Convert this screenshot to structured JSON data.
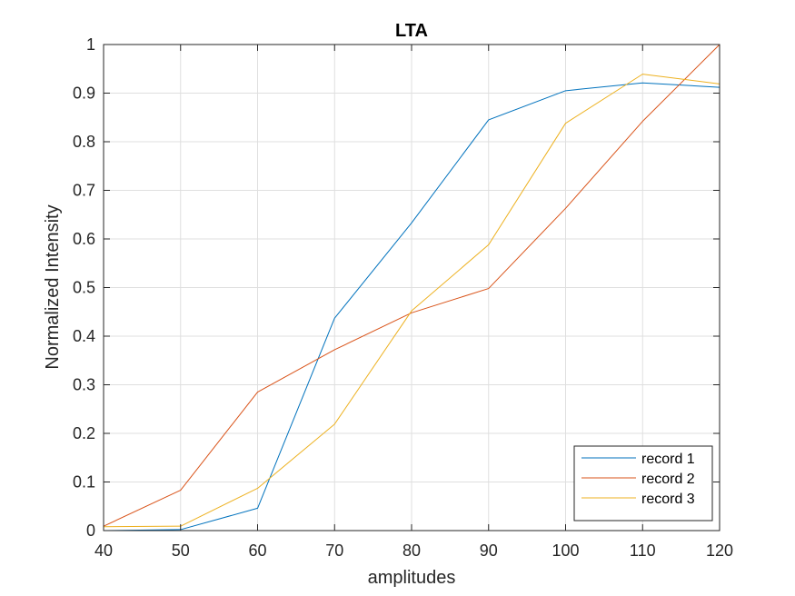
{
  "chart_data": {
    "type": "line",
    "title": "LTA",
    "xlabel": "amplitudes",
    "ylabel": "Normalized Intensity",
    "xlim": [
      40,
      120
    ],
    "ylim": [
      0,
      1
    ],
    "xticks": [
      40,
      50,
      60,
      70,
      80,
      90,
      100,
      110,
      120
    ],
    "yticks": [
      0,
      0.1,
      0.2,
      0.3,
      0.4,
      0.5,
      0.6,
      0.7,
      0.8,
      0.9,
      1
    ],
    "ytick_labels": [
      "0",
      "0.1",
      "0.2",
      "0.3",
      "0.4",
      "0.5",
      "0.6",
      "0.7",
      "0.8",
      "0.9",
      "1"
    ],
    "grid": true,
    "legend_position": "bottom-right",
    "x": [
      40,
      50,
      60,
      70,
      80,
      90,
      100,
      110,
      120
    ],
    "series": [
      {
        "name": "record 1",
        "color": "#0072BD",
        "values": [
          0.0,
          0.002,
          0.046,
          0.437,
          0.633,
          0.845,
          0.905,
          0.921,
          0.912
        ]
      },
      {
        "name": "record 2",
        "color": "#D95319",
        "values": [
          0.009,
          0.083,
          0.285,
          0.372,
          0.448,
          0.498,
          0.663,
          0.842,
          1.0
        ]
      },
      {
        "name": "record 3",
        "color": "#EDB120",
        "values": [
          0.008,
          0.009,
          0.087,
          0.219,
          0.452,
          0.588,
          0.838,
          0.939,
          0.919
        ]
      }
    ]
  }
}
